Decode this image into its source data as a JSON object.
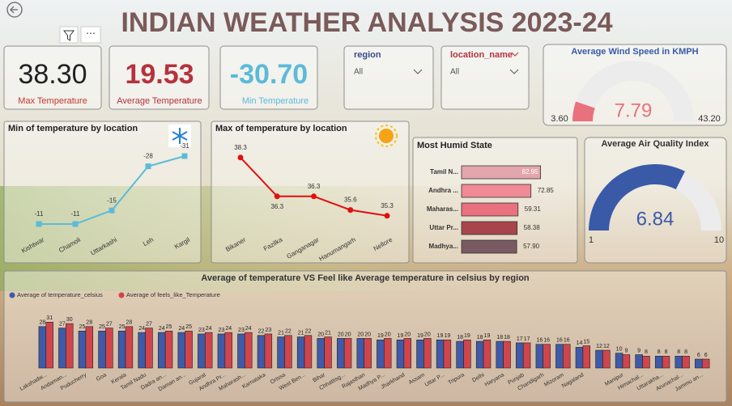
{
  "header": {
    "title": "INDIAN WEATHER ANALYSIS 2023-24"
  },
  "cards": [
    {
      "value": "38.30",
      "label": "Max Temperature"
    },
    {
      "value": "19.53",
      "label": "Average Temperature"
    },
    {
      "value": "-30.70",
      "label": "Min Temperature"
    }
  ],
  "slicers": [
    {
      "title": "region",
      "selection": "All"
    },
    {
      "title": "location_name",
      "selection": "All"
    }
  ],
  "chart_data": [
    {
      "type": "gauge",
      "title": "Average Wind Speed in KMPH",
      "value": 7.79,
      "min": {
        "value": 3.6,
        "label": "3.60"
      },
      "max": {
        "value": 43.2,
        "label": "43.20"
      },
      "color": "#e8717d"
    },
    {
      "type": "line",
      "title": "Min of temperature by location",
      "categories": [
        "Kishtwar",
        "Chamoli",
        "Uttarkashi",
        "Leh",
        "Kargil"
      ],
      "values": [
        -11,
        -11,
        -15,
        -28,
        -31
      ],
      "color": "#5bbbd8",
      "ylim": [
        -8,
        -33
      ]
    },
    {
      "type": "line",
      "title": "Max of temperature by location",
      "categories": [
        "Bikaner",
        "Fazilka",
        "Ganganagar",
        "Hanumangarh",
        "Nellore"
      ],
      "values": [
        38.3,
        36.3,
        36.3,
        35.6,
        35.3
      ],
      "color": "#e01010",
      "ylim": [
        35,
        39
      ]
    },
    {
      "type": "hbar",
      "title": "Most Humid State",
      "categories": [
        "Tamil N...",
        "Andhra ...",
        "Maharas...",
        "Uttar Pr...",
        "Madhya..."
      ],
      "values": [
        82.95,
        72.85,
        59.31,
        58.38,
        57.9
      ],
      "value_labels": [
        "82.95",
        "72.85",
        "59.31",
        "58.38",
        "57.90"
      ],
      "colors": [
        "#e3a6ad",
        "#f08a96",
        "#e8717d",
        "#a8454c",
        "#7a5a62"
      ],
      "xlim": [
        0,
        85
      ]
    },
    {
      "type": "gauge",
      "title": "Average Air Quality Index",
      "value": 6.84,
      "min": 1,
      "max": 10,
      "color": "#3a5aa8"
    },
    {
      "type": "bar",
      "title": "Average of temperature VS Feel like Average temperature in celsius by region",
      "categories": [
        "Lakshadw...",
        "Andaman...",
        "Puducherry",
        "Goa",
        "Kerala",
        "Tamil Nadu",
        "Dadra an...",
        "Daman an...",
        "Gujarat",
        "Andhra Pr...",
        "Maharash...",
        "Karnataka",
        "Orissa",
        "West Ben...",
        "Bihar",
        "Chhattisg...",
        "Rajasthan",
        "Madhya P...",
        "Jharkhand",
        "Assam",
        "Uttar P...",
        "Tripura",
        "Delhi",
        "Haryana",
        "Punjab",
        "Chandigarh",
        "Mizoram",
        "Nagaland",
        null,
        "Manipur",
        "Himachal...",
        "Uttarakha...",
        "Arunachal...",
        "Jammu an..."
      ],
      "series": [
        {
          "name": "Average of temperature_celsius",
          "color": "#3f5aa8",
          "values": [
            28,
            27,
            25,
            25,
            25,
            24,
            24,
            24,
            23,
            23,
            23,
            22,
            21,
            21,
            20,
            20,
            20,
            19,
            19,
            19,
            19,
            18,
            18,
            18,
            17,
            16,
            16,
            14,
            12,
            10,
            9,
            8,
            8,
            6
          ]
        },
        {
          "name": "Average of feels_like_Temperature",
          "color": "#d0454c",
          "values": [
            31,
            30,
            28,
            27,
            28,
            27,
            25,
            25,
            24,
            24,
            24,
            23,
            22,
            22,
            21,
            20,
            20,
            20,
            20,
            20,
            19,
            19,
            19,
            18,
            17,
            16,
            16,
            15,
            12,
            9,
            8,
            8,
            8,
            6
          ]
        }
      ],
      "ylim": [
        0,
        35
      ],
      "legend": "top-left"
    }
  ]
}
